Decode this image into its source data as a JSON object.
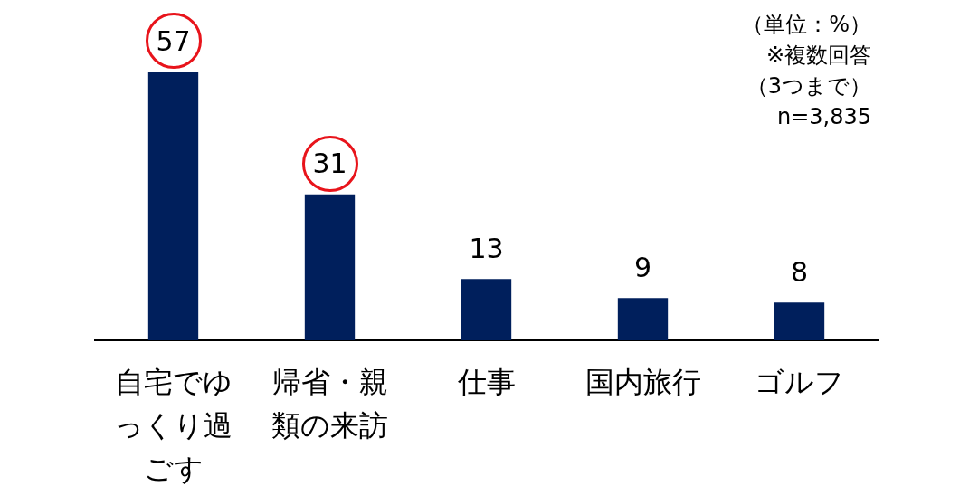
{
  "chart_data": {
    "type": "bar",
    "categories": [
      "自宅でゆっくり過ごす",
      "帰省・親類の来訪",
      "仕事",
      "国内旅行",
      "ゴルフ"
    ],
    "values": [
      57,
      31,
      13,
      9,
      8
    ],
    "color": "#001f5c",
    "data_labels": true,
    "annotations": [
      "（単位：%）",
      "※複数回答",
      "（3つまで）",
      "n=3,835"
    ],
    "legend": false,
    "grid": false
  }
}
